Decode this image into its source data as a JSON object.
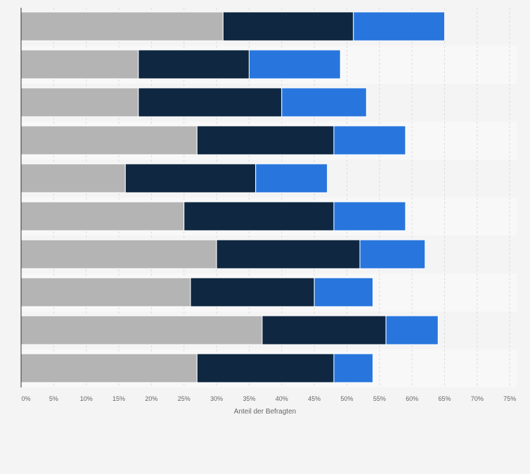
{
  "chart_data": {
    "type": "bar",
    "orientation": "horizontal",
    "stacked": true,
    "categories": [
      "",
      "",
      "",
      "",
      "",
      "",
      "",
      "",
      "",
      ""
    ],
    "series": [
      {
        "values": [
          31,
          18,
          18,
          27,
          16,
          25,
          30,
          26,
          37,
          27
        ],
        "color": "#b4b4b4"
      },
      {
        "values": [
          20,
          17,
          22,
          21,
          20,
          23,
          22,
          19,
          19,
          21
        ],
        "color": "#0f2740"
      },
      {
        "values": [
          14,
          14,
          13,
          11,
          11,
          11,
          10,
          9,
          8,
          6
        ],
        "color": "#2876dd"
      }
    ],
    "xlim": [
      0,
      75
    ],
    "x_ticks": [
      "0%",
      "5%",
      "10%",
      "15%",
      "20%",
      "25%",
      "30%",
      "35%",
      "40%",
      "45%",
      "50%",
      "55%",
      "60%",
      "65%",
      "70%",
      "75%"
    ],
    "xlabel": "Anteil der Befragten",
    "ylabel": "",
    "title": "",
    "grid": true,
    "legend": "none"
  }
}
